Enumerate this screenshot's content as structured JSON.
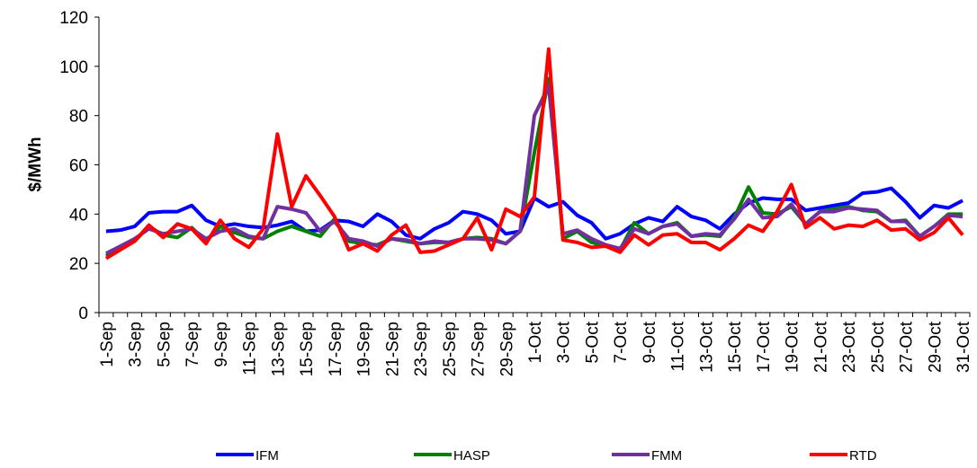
{
  "chart_data": {
    "type": "line",
    "y_label": "$/MWh",
    "categories": [
      "1-Sep",
      null,
      "3-Sep",
      null,
      "5-Sep",
      null,
      "7-Sep",
      null,
      "9-Sep",
      null,
      "11-Sep",
      null,
      "13-Sep",
      null,
      "15-Sep",
      null,
      "17-Sep",
      null,
      "19-Sep",
      null,
      "21-Sep",
      null,
      "23-Sep",
      null,
      "25-Sep",
      null,
      "27-Sep",
      null,
      "29-Sep",
      null,
      "1-Oct",
      null,
      "3-Oct",
      null,
      "5-Oct",
      null,
      "7-Oct",
      null,
      "9-Oct",
      null,
      "11-Oct",
      null,
      "13-Oct",
      null,
      "15-Oct",
      null,
      "17-Oct",
      null,
      "19-Oct",
      null,
      "21-Oct",
      null,
      "23-Oct",
      null,
      "25-Oct",
      null,
      "27-Oct",
      null,
      "29-Oct",
      null,
      "31-Oct"
    ],
    "series": [
      {
        "name": "IFM",
        "color": "#0000ff",
        "values": [
          33,
          33.5,
          35,
          40.5,
          41,
          41,
          43.5,
          37.5,
          35,
          36,
          35,
          34.5,
          35.5,
          37,
          33,
          33.5,
          37.5,
          37,
          35,
          40,
          37,
          31.5,
          30,
          34,
          36.5,
          41,
          40,
          37.5,
          32,
          33,
          46.5,
          43,
          45,
          39.5,
          36.5,
          30,
          32,
          36,
          38.5,
          37,
          43,
          39,
          37.5,
          34,
          40,
          44.5,
          46.5,
          46,
          46,
          41.5,
          42.5,
          43.5,
          44.5,
          48.5,
          49,
          50.5,
          45,
          38.5,
          43.5,
          42.5,
          45.5
        ]
      },
      {
        "name": "HASP",
        "color": "#008000",
        "values": [
          23,
          26,
          29,
          35,
          31.5,
          30.5,
          34.5,
          29,
          35,
          32.5,
          30.5,
          30,
          33,
          35,
          33,
          31,
          38,
          29,
          28,
          27.5,
          30,
          29,
          28,
          28.5,
          28.5,
          30,
          30.5,
          30,
          28,
          33,
          65,
          95,
          30,
          33,
          28.5,
          27,
          25.5,
          36.5,
          32,
          35,
          36.5,
          31,
          31.5,
          31,
          38.5,
          51,
          40.5,
          40,
          43,
          36,
          41,
          42,
          43,
          41.5,
          41,
          37,
          37.5,
          31,
          35,
          40,
          40
        ]
      },
      {
        "name": "FMM",
        "color": "#7030a0",
        "values": [
          24,
          27,
          30,
          34,
          32,
          33,
          34,
          30,
          33,
          34,
          31,
          30,
          43,
          42,
          40.5,
          33,
          37,
          30,
          29,
          27,
          30,
          29.5,
          28,
          29,
          28.5,
          30,
          30,
          29.5,
          28,
          33,
          80,
          92,
          32,
          33.5,
          30,
          27.5,
          26,
          34,
          32,
          35,
          36,
          31,
          32,
          31.5,
          38,
          46,
          38.5,
          39,
          44,
          36,
          41,
          41,
          42.5,
          42,
          41.5,
          37,
          37,
          31,
          35,
          39.5,
          39
        ]
      },
      {
        "name": "RTD",
        "color": "#ff0000",
        "values": [
          22,
          25.5,
          29,
          35.5,
          30.5,
          36,
          34,
          28,
          37.5,
          30,
          26.5,
          34,
          72.5,
          43,
          55.5,
          47.5,
          39,
          25.5,
          28,
          25,
          31.5,
          35.5,
          24.5,
          25,
          27.5,
          30,
          38.5,
          25.5,
          42,
          39,
          47,
          107,
          29.5,
          28.5,
          26.5,
          27,
          24.5,
          31.5,
          27.5,
          31.5,
          32,
          28.5,
          28.5,
          25.5,
          30,
          35.5,
          33,
          41,
          52,
          34.5,
          38.5,
          34,
          35.5,
          35,
          37.5,
          33.5,
          34,
          29.5,
          32.5,
          38.5,
          31.5
        ]
      }
    ],
    "ylim": [
      0,
      120
    ],
    "yticks": [
      0,
      20,
      40,
      60,
      80,
      100,
      120
    ],
    "legend": "bottom"
  }
}
